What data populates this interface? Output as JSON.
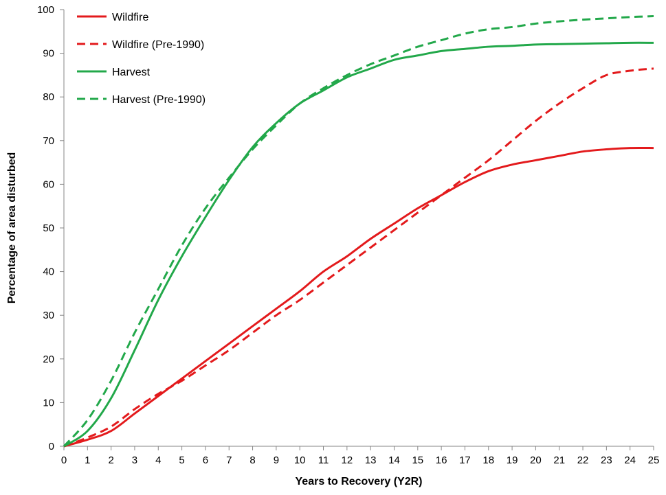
{
  "chart_data": {
    "type": "line",
    "title": "",
    "xlabel": "Years to Recovery (Y2R)",
    "ylabel": "Percentage of area disturbed",
    "xlim": [
      0,
      25
    ],
    "ylim": [
      0,
      100
    ],
    "x_ticks": [
      "0",
      "1",
      "2",
      "3",
      "4",
      "5",
      "6",
      "7",
      "8",
      "9",
      "10",
      "11",
      "12",
      "13",
      "14",
      "15",
      "16",
      "17",
      "18",
      "19",
      "20",
      "21",
      "22",
      "23",
      "24",
      "25"
    ],
    "y_ticks": [
      "0",
      "10",
      "20",
      "30",
      "40",
      "50",
      "60",
      "70",
      "80",
      "90",
      "100"
    ],
    "grid": false,
    "legend": "top-left",
    "x": [
      0,
      1,
      2,
      3,
      4,
      5,
      6,
      7,
      8,
      9,
      10,
      11,
      12,
      13,
      14,
      15,
      16,
      17,
      18,
      19,
      20,
      21,
      22,
      23,
      24,
      25
    ],
    "series": [
      {
        "name": "Wildfire",
        "color": "#e31a1c",
        "style": "solid",
        "values": [
          0,
          1.5,
          3.5,
          7.5,
          11.5,
          15.5,
          19.5,
          23.5,
          27.5,
          31.5,
          35.5,
          40,
          43.5,
          47.5,
          51,
          54.5,
          57.5,
          60.5,
          63,
          64.5,
          65.5,
          66.5,
          67.5,
          68,
          68.3,
          68.3
        ]
      },
      {
        "name": "Wildfire (Pre-1990)",
        "color": "#e31a1c",
        "style": "dashed",
        "values": [
          0,
          2,
          4.5,
          8.5,
          12,
          15,
          18.5,
          22,
          26,
          30,
          33.5,
          37.5,
          41.5,
          45.5,
          49.5,
          53.5,
          57.5,
          61.5,
          65.5,
          70,
          74.5,
          78.5,
          82,
          85,
          86,
          86.5
        ]
      },
      {
        "name": "Harvest",
        "color": "#22a84a",
        "style": "solid",
        "values": [
          0,
          3.5,
          11,
          22,
          33.5,
          43.5,
          52.5,
          61,
          68.5,
          74,
          78.5,
          81.5,
          84.5,
          86.5,
          88.5,
          89.5,
          90.5,
          91,
          91.5,
          91.7,
          92,
          92.1,
          92.2,
          92.3,
          92.4,
          92.4
        ]
      },
      {
        "name": "Harvest (Pre-1990)",
        "color": "#22a84a",
        "style": "dashed",
        "values": [
          0,
          6,
          15,
          26,
          36,
          46,
          54.5,
          61.5,
          68,
          73.5,
          78.5,
          82,
          85,
          87.5,
          89.5,
          91.5,
          93,
          94.5,
          95.5,
          96,
          96.8,
          97.3,
          97.7,
          98,
          98.3,
          98.5
        ]
      }
    ]
  }
}
